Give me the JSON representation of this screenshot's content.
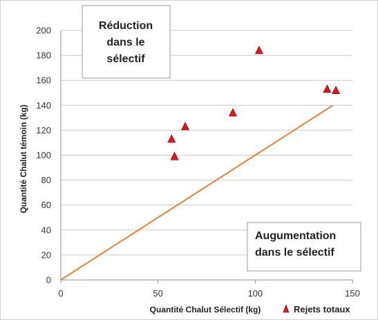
{
  "chart_data": {
    "type": "scatter",
    "xlabel": "Quantité Chalut Sélectif (kg)",
    "ylabel": "Quantité Chalut témoin (kg)",
    "xlim": [
      0,
      150
    ],
    "ylim": [
      0,
      200
    ],
    "x_ticks": [
      0,
      50,
      100,
      150
    ],
    "y_ticks": [
      0,
      20,
      40,
      60,
      80,
      100,
      120,
      140,
      160,
      180,
      200
    ],
    "grid": "horizontal",
    "legend_position": "bottom-right",
    "series": [
      {
        "name": "Rejets totaux",
        "marker": "triangle",
        "color": "#e3141b",
        "points": [
          {
            "x": 57,
            "y": 113
          },
          {
            "x": 58.5,
            "y": 99
          },
          {
            "x": 64,
            "y": 123
          },
          {
            "x": 88.5,
            "y": 134
          },
          {
            "x": 102,
            "y": 184
          },
          {
            "x": 137,
            "y": 153
          },
          {
            "x": 141.5,
            "y": 152
          }
        ]
      }
    ],
    "reference_line": {
      "color": "#ed7d31",
      "from": {
        "x": 0,
        "y": 0
      },
      "to": {
        "x": 140,
        "y": 140
      }
    },
    "annotations": [
      {
        "id": "reduction",
        "lines": [
          "Réduction",
          "dans le",
          "sélectif"
        ]
      },
      {
        "id": "augmentation",
        "lines": [
          "Augumentation",
          "dans le sélectif"
        ]
      }
    ]
  }
}
